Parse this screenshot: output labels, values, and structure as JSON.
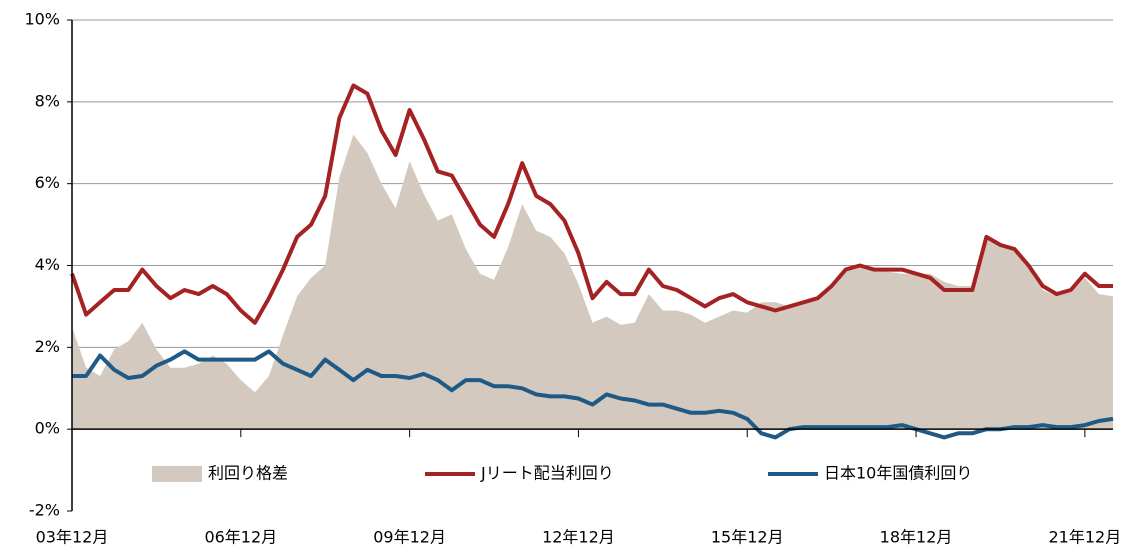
{
  "chart_data": {
    "type": "line",
    "categories": [
      "03年12月",
      null,
      null,
      null,
      null,
      null,
      null,
      null,
      null,
      null,
      null,
      null,
      "06年12月",
      null,
      null,
      null,
      null,
      null,
      null,
      null,
      null,
      null,
      null,
      null,
      "09年12月",
      null,
      null,
      null,
      null,
      null,
      null,
      null,
      null,
      null,
      null,
      null,
      "12年12月",
      null,
      null,
      null,
      null,
      null,
      null,
      null,
      null,
      null,
      null,
      null,
      "15年12月",
      null,
      null,
      null,
      null,
      null,
      null,
      null,
      null,
      null,
      null,
      null,
      "18年12月",
      null,
      null,
      null,
      null,
      null,
      null,
      null,
      null,
      null,
      null,
      null,
      "21年12月",
      null,
      null
    ],
    "series": [
      {
        "name": "利回り格差",
        "color": "#d4c9bf",
        "fill": true,
        "values": [
          2.5,
          1.5,
          1.3,
          1.95,
          2.15,
          2.6,
          1.95,
          1.5,
          1.5,
          1.6,
          1.8,
          1.6,
          1.2,
          0.9,
          1.3,
          2.3,
          3.25,
          3.7,
          4.0,
          6.15,
          7.2,
          6.75,
          6.0,
          5.4,
          6.55,
          5.75,
          5.1,
          5.25,
          4.4,
          3.8,
          3.65,
          4.45,
          5.5,
          4.85,
          4.7,
          4.3,
          3.55,
          2.6,
          2.75,
          2.55,
          2.6,
          3.3,
          2.9,
          2.9,
          2.8,
          2.6,
          2.75,
          2.9,
          2.85,
          3.1,
          3.1,
          3.0,
          3.05,
          3.15,
          3.45,
          3.85,
          3.95,
          3.85,
          3.85,
          3.8,
          3.8,
          3.8,
          3.6,
          3.5,
          3.5,
          4.7,
          4.5,
          4.35,
          3.95,
          3.4,
          3.25,
          3.35,
          3.7,
          3.3,
          3.25
        ]
      },
      {
        "name": "Jリート配当利回り",
        "color": "#a52223",
        "values": [
          3.8,
          2.8,
          3.1,
          3.4,
          3.4,
          3.9,
          3.5,
          3.2,
          3.4,
          3.3,
          3.5,
          3.3,
          2.9,
          2.6,
          3.2,
          3.9,
          4.7,
          5.0,
          5.7,
          7.6,
          8.4,
          8.2,
          7.3,
          6.7,
          7.8,
          7.1,
          6.3,
          6.2,
          5.6,
          5.0,
          4.7,
          5.5,
          6.5,
          5.7,
          5.5,
          5.1,
          4.3,
          3.2,
          3.6,
          3.3,
          3.3,
          3.9,
          3.5,
          3.4,
          3.2,
          3.0,
          3.2,
          3.3,
          3.1,
          3.0,
          2.9,
          3.0,
          3.1,
          3.2,
          3.5,
          3.9,
          4.0,
          3.9,
          3.9,
          3.9,
          3.8,
          3.7,
          3.4,
          3.4,
          3.4,
          4.7,
          4.5,
          4.4,
          4.0,
          3.5,
          3.3,
          3.4,
          3.8,
          3.5,
          3.5
        ]
      },
      {
        "name": "日本10年国債利回り",
        "color": "#1e5a85",
        "values": [
          1.3,
          1.3,
          1.8,
          1.45,
          1.25,
          1.3,
          1.55,
          1.7,
          1.9,
          1.7,
          1.7,
          1.7,
          1.7,
          1.7,
          1.9,
          1.6,
          1.45,
          1.3,
          1.7,
          1.45,
          1.2,
          1.45,
          1.3,
          1.3,
          1.25,
          1.35,
          1.2,
          0.95,
          1.2,
          1.2,
          1.05,
          1.05,
          1.0,
          0.85,
          0.8,
          0.8,
          0.75,
          0.6,
          0.85,
          0.75,
          0.7,
          0.6,
          0.6,
          0.5,
          0.4,
          0.4,
          0.45,
          0.4,
          0.25,
          -0.1,
          -0.2,
          0.0,
          0.05,
          0.05,
          0.05,
          0.05,
          0.05,
          0.05,
          0.05,
          0.1,
          0.0,
          -0.1,
          -0.2,
          -0.1,
          -0.1,
          0.0,
          0.0,
          0.05,
          0.05,
          0.1,
          0.05,
          0.05,
          0.1,
          0.2,
          0.25
        ]
      }
    ],
    "ylim": [
      -2,
      10
    ],
    "yticks": [
      {
        "value": -2,
        "label": "-2%"
      },
      {
        "value": 0,
        "label": "0%"
      },
      {
        "value": 2,
        "label": "2%"
      },
      {
        "value": 4,
        "label": "4%"
      },
      {
        "value": 6,
        "label": "6%"
      },
      {
        "value": 8,
        "label": "8%"
      },
      {
        "value": 10,
        "label": "10%"
      }
    ],
    "grid": true,
    "legend": "bottom"
  }
}
